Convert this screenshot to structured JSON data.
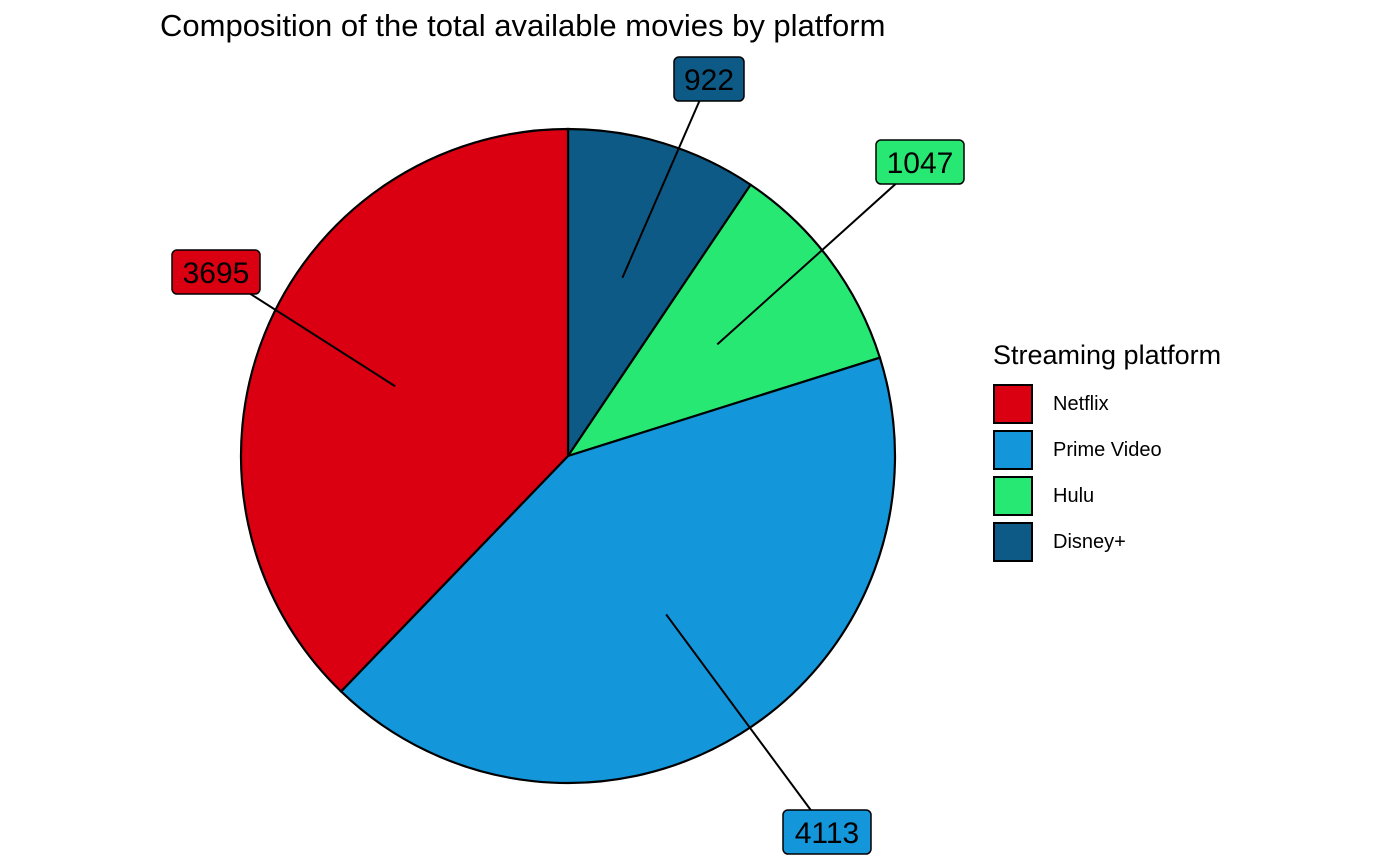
{
  "chart_data": {
    "type": "pie",
    "title": "Composition of the total available movies by platform",
    "legend_title": "Streaming platform",
    "legend_position": "right",
    "slices": [
      {
        "name": "Netflix",
        "value": 3695,
        "color": "#DA0011"
      },
      {
        "name": "Prime Video",
        "value": 4113,
        "color": "#1496DA"
      },
      {
        "name": "Hulu",
        "value": 1047,
        "color": "#27E873"
      },
      {
        "name": "Disney+",
        "value": 922,
        "color": "#0E5A87"
      }
    ],
    "draw_order": [
      "Disney+",
      "Hulu",
      "Prime Video",
      "Netflix"
    ],
    "start": "12 o'clock",
    "direction": "clockwise"
  }
}
